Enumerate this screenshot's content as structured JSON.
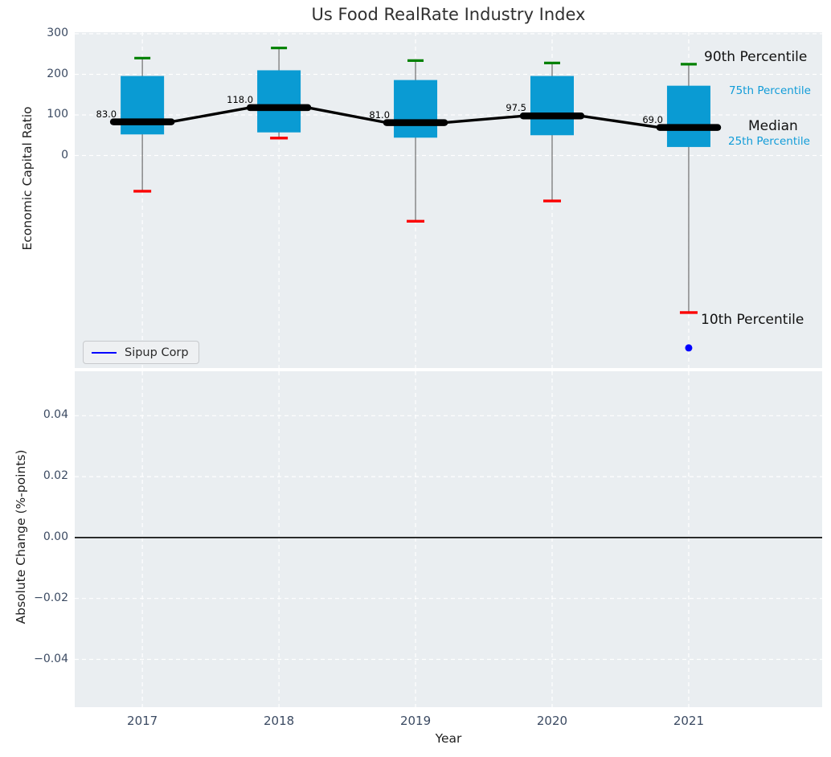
{
  "title": "Us Food RealRate Industry Index",
  "colors": {
    "box_fill": "#0a9bd3",
    "whisker": "#6e6e6e",
    "p90_cap": "#008000",
    "p10_cap": "#fb0000",
    "median_line": "#000000",
    "company": "#0000ff",
    "grid": "#ffffff",
    "axes_bg": "#eaeef1",
    "tick_label": "#3b4a62",
    "cyan_label": "#119cd8"
  },
  "chart_data": [
    {
      "type": "boxplot+line",
      "title": "Us Food RealRate Industry Index",
      "ylabel": "Economic Capital Ratio",
      "xlim": [
        2016.505,
        2021.977
      ],
      "ylim": [
        -523.7,
        304
      ],
      "grid": true,
      "yticks": [
        {
          "label": "300",
          "value": 300
        },
        {
          "label": "200",
          "value": 200
        },
        {
          "label": "100",
          "value": 100
        },
        {
          "label": "0",
          "value": 0
        }
      ],
      "xticks": [
        {
          "label": "2017",
          "value": 2017
        },
        {
          "label": "2018",
          "value": 2018
        },
        {
          "label": "2019",
          "value": 2019
        },
        {
          "label": "2020",
          "value": 2020
        },
        {
          "label": "2021",
          "value": 2021
        }
      ],
      "boxes": [
        {
          "year": 2017,
          "p90": 240,
          "q75": 196,
          "median": 83.0,
          "q25": 52,
          "p10": -88,
          "median_label": "83.0"
        },
        {
          "year": 2018,
          "p90": 265,
          "q75": 210,
          "median": 118.0,
          "q25": 57,
          "p10": 43,
          "median_label": "118.0"
        },
        {
          "year": 2019,
          "p90": 234,
          "q75": 186,
          "median": 81.0,
          "q25": 44,
          "p10": -162,
          "median_label": "81.0"
        },
        {
          "year": 2020,
          "p90": 228,
          "q75": 196,
          "median": 97.5,
          "q25": 50,
          "p10": -112,
          "median_label": "97.5"
        },
        {
          "year": 2021,
          "p90": 225,
          "q75": 172,
          "median": 69.0,
          "q25": 21,
          "p10": -387,
          "median_label": "69.0"
        }
      ],
      "annotations": {
        "p90": "90th Percentile",
        "p75": "75th Percentile",
        "median": "Median",
        "p25": "25th Percentile",
        "p10": "10th Percentile"
      },
      "legend": {
        "label": "Sipup Corp"
      },
      "company_point": {
        "year": 2021,
        "value": -474
      }
    },
    {
      "type": "line",
      "ylabel": "Absolute Change (%-points)",
      "xlabel": "Year",
      "xlim": [
        2016.505,
        2021.977
      ],
      "ylim": [
        -0.0557,
        0.0546
      ],
      "grid": true,
      "yticks": [
        {
          "label": "0.04",
          "value": 0.04
        },
        {
          "label": "0.02",
          "value": 0.02
        },
        {
          "label": "0.00",
          "value": 0.0
        },
        {
          "label": "−0.02",
          "value": -0.02
        },
        {
          "label": "−0.04",
          "value": -0.04
        }
      ],
      "xticks": [
        {
          "label": "2017",
          "value": 2017
        },
        {
          "label": "2018",
          "value": 2018
        },
        {
          "label": "2019",
          "value": 2019
        },
        {
          "label": "2020",
          "value": 2020
        },
        {
          "label": "2021",
          "value": 2021
        }
      ],
      "zero_line": 0.0,
      "series": []
    }
  ]
}
